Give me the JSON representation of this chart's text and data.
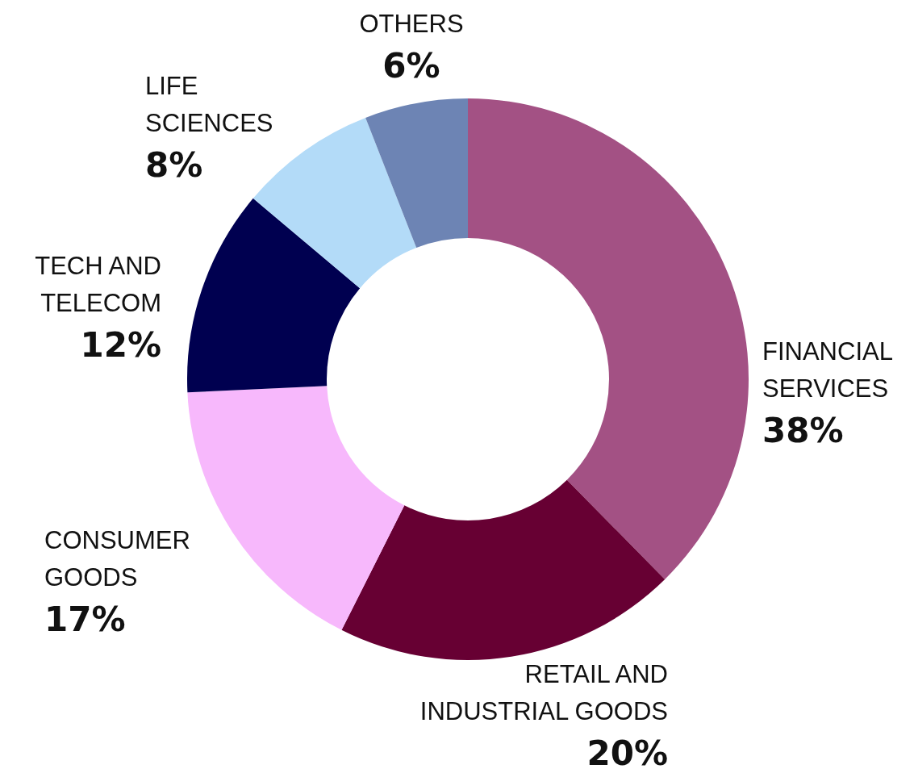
{
  "chart_data": {
    "type": "donut",
    "categories": [
      "FINANCIAL SERVICES",
      "RETAIL AND INDUSTRIAL GOODS",
      "CONSUMER GOODS",
      "TECH AND TELECOM",
      "LIFE SCIENCES",
      "OTHERS"
    ],
    "values": [
      38,
      20,
      17,
      12,
      8,
      6
    ],
    "colors": [
      "#a35184",
      "#670033",
      "#f7b8fc",
      "#000050",
      "#b3dbf8",
      "#6d84b4"
    ],
    "value_labels": [
      "38%",
      "20%",
      "17%",
      "12%",
      "8%",
      "6%"
    ]
  }
}
